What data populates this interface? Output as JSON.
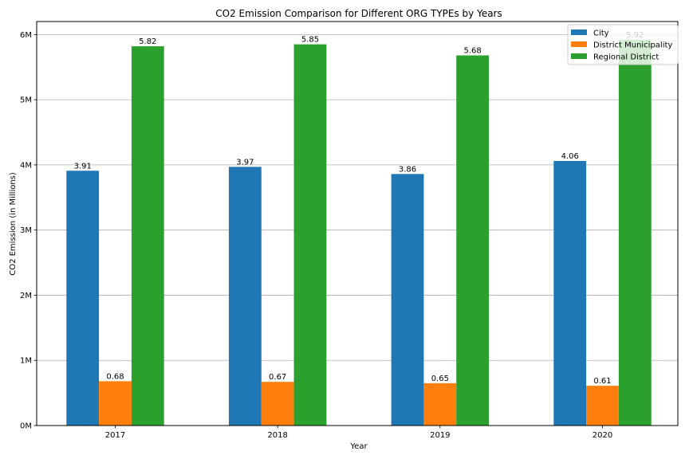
{
  "chart_data": {
    "type": "bar",
    "title": "CO2 Emission Comparison for Different ORG TYPEs by Years",
    "xlabel": "Year",
    "ylabel": "CO2 Emission (in Millions)",
    "categories": [
      "2017",
      "2018",
      "2019",
      "2020"
    ],
    "yticks": [
      0,
      1,
      2,
      3,
      4,
      5,
      6
    ],
    "ytick_labels": [
      "0M",
      "1M",
      "2M",
      "3M",
      "4M",
      "5M",
      "6M"
    ],
    "ylim": [
      0,
      6.2
    ],
    "grid": "y",
    "legend_position": "top-right",
    "series": [
      {
        "name": "City",
        "color": "#1f77b4",
        "values": [
          3.91,
          3.97,
          3.86,
          4.06
        ],
        "labels": [
          "3.91",
          "3.97",
          "3.86",
          "4.06"
        ]
      },
      {
        "name": "District Municipality",
        "color": "#ff7f0e",
        "values": [
          0.68,
          0.67,
          0.65,
          0.61
        ],
        "labels": [
          "0.68",
          "0.67",
          "0.65",
          "0.61"
        ]
      },
      {
        "name": "Regional District",
        "color": "#2ca02c",
        "values": [
          5.82,
          5.85,
          5.68,
          5.92
        ],
        "labels": [
          "5.82",
          "5.85",
          "5.68",
          "5.92"
        ]
      }
    ]
  }
}
